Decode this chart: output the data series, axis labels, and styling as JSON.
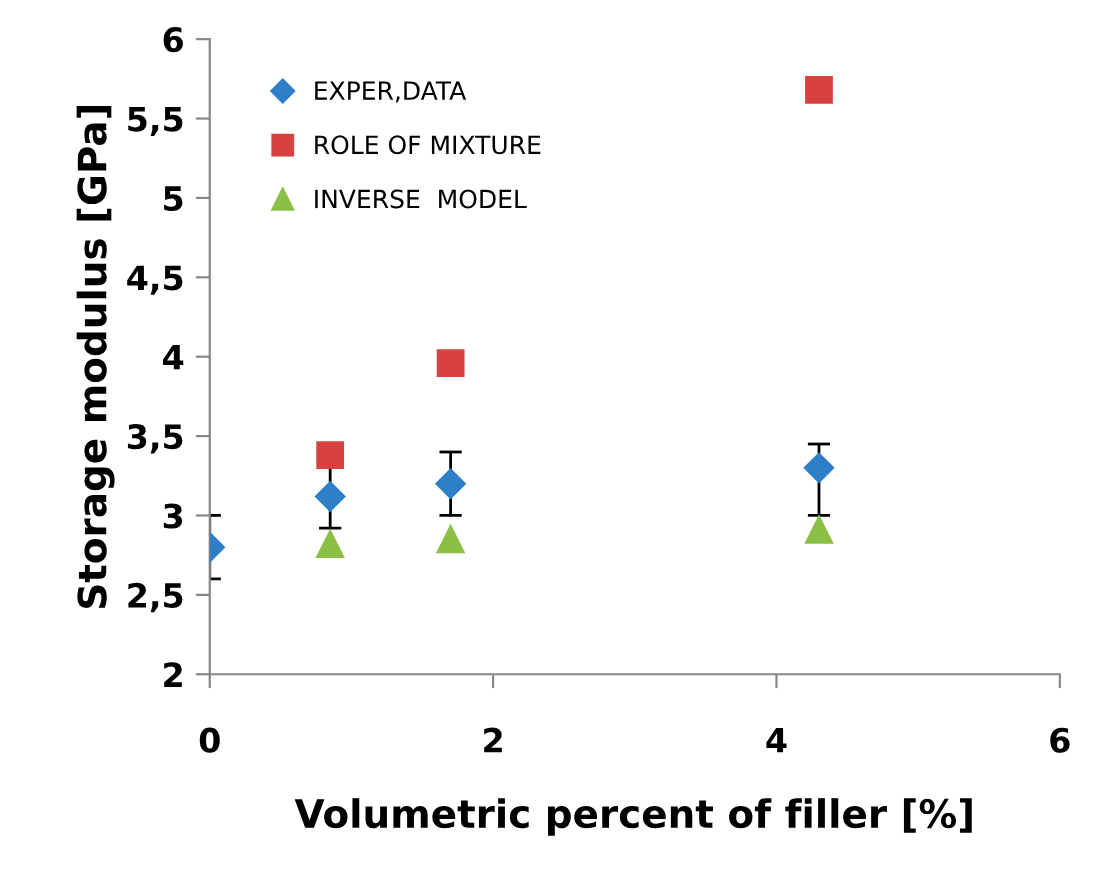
{
  "chart_data": {
    "type": "scatter",
    "xlabel": "Volumetric percent of filler [%]",
    "ylabel": "Storage modulus [GPa]",
    "xlim": [
      0,
      6
    ],
    "xticks": [
      0,
      2,
      4,
      6
    ],
    "ylim": [
      2,
      6
    ],
    "yticks": [
      2,
      {
        "value": 2.5,
        "label": "2,5"
      },
      3,
      {
        "value": 3.5,
        "label": "3,5"
      },
      4,
      {
        "value": 4.5,
        "label": "4,5"
      },
      5,
      {
        "value": 5.5,
        "label": "5,5"
      },
      6
    ],
    "grid": false,
    "legend": "top left",
    "series": [
      {
        "name": "EXPER,DATA",
        "color": "#2e7ec8",
        "marker": "diamond",
        "x": [
          0,
          0.85,
          1.7,
          4.3
        ],
        "values": [
          2.8,
          3.12,
          3.2,
          3.3
        ],
        "errors": [
          0.2,
          0.2,
          0.2,
          [
            3.0,
            3.45
          ]
        ]
      },
      {
        "name": "ROLE OF MIXTURE",
        "color": "#d9413e",
        "marker": "square",
        "x": [
          0.85,
          1.7,
          4.3
        ],
        "values": [
          3.38,
          3.96,
          5.68
        ]
      },
      {
        "name": "INVERSE  MODEL",
        "color": "#8cbf45",
        "marker": "triangle",
        "x": [
          0.85,
          1.7,
          4.3
        ],
        "values": [
          2.82,
          2.85,
          2.91
        ]
      }
    ]
  }
}
